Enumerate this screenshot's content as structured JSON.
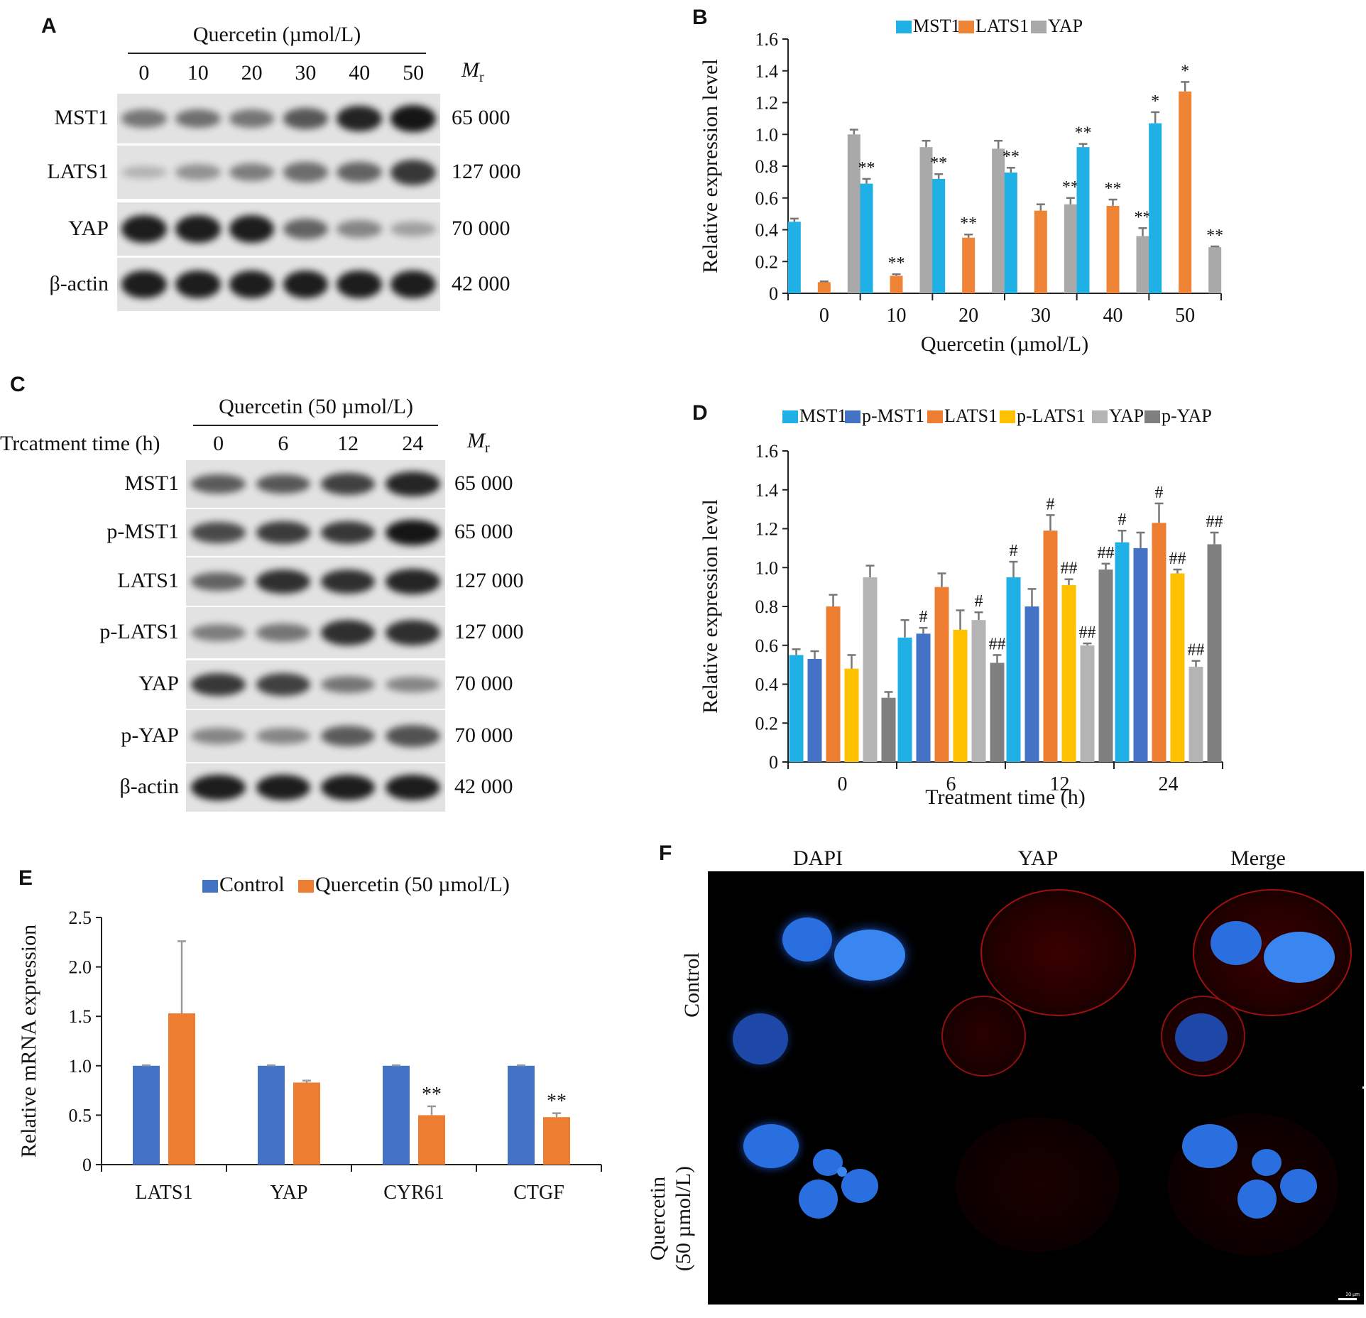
{
  "panels": {
    "a": "A",
    "b": "B",
    "c": "C",
    "d": "D",
    "e": "E",
    "f": "F"
  },
  "blot_a": {
    "title": "Quercetin (µmol/L)",
    "lanes": [
      "0",
      "10",
      "20",
      "30",
      "40",
      "50"
    ],
    "mr_label": "M",
    "mr_sub": "r",
    "rows": [
      {
        "label": "MST1",
        "mw": "65 000",
        "intensity": [
          0.45,
          0.48,
          0.45,
          0.62,
          0.92,
          1.0
        ]
      },
      {
        "label": "LATS1",
        "mw": "127 000",
        "intensity": [
          0.1,
          0.28,
          0.4,
          0.5,
          0.55,
          0.8
        ]
      },
      {
        "label": "YAP",
        "mw": "70 000",
        "intensity": [
          0.95,
          0.95,
          0.95,
          0.55,
          0.35,
          0.2
        ]
      },
      {
        "label": "β-actin",
        "mw": "42 000",
        "intensity": [
          0.95,
          0.95,
          0.95,
          0.95,
          0.95,
          0.95
        ]
      }
    ]
  },
  "blot_c": {
    "title": "Quercetin (50 µmol/L)",
    "time_label": "Trcatment time (h)",
    "lanes": [
      "0",
      "6",
      "12",
      "24"
    ],
    "mr_label": "M",
    "mr_sub": "r",
    "rows": [
      {
        "label": "MST1",
        "mw": "65 000",
        "intensity": [
          0.6,
          0.62,
          0.75,
          0.9
        ]
      },
      {
        "label": "p-MST1",
        "mw": "65 000",
        "intensity": [
          0.7,
          0.78,
          0.8,
          1.0
        ]
      },
      {
        "label": "LATS1",
        "mw": "127 000",
        "intensity": [
          0.55,
          0.85,
          0.85,
          0.9
        ]
      },
      {
        "label": "p-LATS1",
        "mw": "127 000",
        "intensity": [
          0.4,
          0.45,
          0.85,
          0.85
        ]
      },
      {
        "label": "YAP",
        "mw": "70 000",
        "intensity": [
          0.8,
          0.75,
          0.45,
          0.35
        ]
      },
      {
        "label": "p-YAP",
        "mw": "70 000",
        "intensity": [
          0.35,
          0.35,
          0.6,
          0.65
        ]
      },
      {
        "label": "β-actin",
        "mw": "42 000",
        "intensity": [
          0.95,
          0.95,
          0.95,
          0.95
        ]
      }
    ]
  },
  "chart_data": [
    {
      "id": "B",
      "type": "bar",
      "xlabel": "Quercetin (µmol/L)",
      "ylabel": "Relative expression level",
      "ylim": [
        0,
        1.6
      ],
      "yticks": [
        "0",
        "0.2",
        "0.4",
        "0.6",
        "0.8",
        "1.0",
        "1.2",
        "1.4",
        "1.6"
      ],
      "categories": [
        "0",
        "10",
        "20",
        "30",
        "40",
        "50"
      ],
      "series": [
        {
          "name": "MST1",
          "color": "#1fb0e6",
          "values": [
            0.45,
            0.69,
            0.72,
            0.76,
            0.92,
            1.07
          ],
          "errors": [
            0.02,
            0.03,
            0.03,
            0.03,
            0.02,
            0.07
          ],
          "marks": [
            "",
            "**",
            "**",
            "**",
            "**",
            "*"
          ]
        },
        {
          "name": "LATS1",
          "color": "#f08436",
          "values": [
            0.07,
            0.11,
            0.35,
            0.52,
            0.55,
            1.27
          ],
          "errors": [
            0.005,
            0.01,
            0.02,
            0.04,
            0.04,
            0.06
          ],
          "marks": [
            "",
            "**",
            "**",
            "",
            "**",
            "*"
          ]
        },
        {
          "name": "YAP",
          "color": "#a9a9a9",
          "values": [
            1.0,
            0.92,
            0.91,
            0.56,
            0.36,
            0.29
          ],
          "errors": [
            0.03,
            0.04,
            0.05,
            0.04,
            0.05,
            0.005
          ],
          "marks": [
            "",
            "",
            "",
            "**",
            "**",
            "**"
          ]
        }
      ]
    },
    {
      "id": "D",
      "type": "bar",
      "xlabel": "Treatment time (h)",
      "ylabel": "Relative expression level",
      "ylim": [
        0,
        1.6
      ],
      "yticks": [
        "0",
        "0.2",
        "0.4",
        "0.6",
        "0.8",
        "1.0",
        "1.2",
        "1.4",
        "1.6"
      ],
      "categories": [
        "0",
        "6",
        "12",
        "24"
      ],
      "series": [
        {
          "name": "MST1",
          "color": "#1fb0e6",
          "values": [
            0.55,
            0.64,
            0.95,
            1.13
          ],
          "errors": [
            0.03,
            0.09,
            0.08,
            0.06
          ],
          "marks": [
            "",
            "",
            "#",
            "#"
          ]
        },
        {
          "name": "p-MST1",
          "color": "#4472c4",
          "values": [
            0.53,
            0.66,
            0.8,
            1.1
          ],
          "errors": [
            0.04,
            0.03,
            0.09,
            0.08
          ],
          "marks": [
            "",
            "#",
            "",
            ""
          ]
        },
        {
          "name": "LATS1",
          "color": "#ed7d31",
          "values": [
            0.8,
            0.9,
            1.19,
            1.23
          ],
          "errors": [
            0.06,
            0.07,
            0.08,
            0.1
          ],
          "marks": [
            "",
            "",
            "#",
            "#"
          ]
        },
        {
          "name": "p-LATS1",
          "color": "#ffc000",
          "values": [
            0.48,
            0.68,
            0.91,
            0.97
          ],
          "errors": [
            0.07,
            0.1,
            0.03,
            0.02
          ],
          "marks": [
            "",
            "",
            "##",
            "##"
          ]
        },
        {
          "name": "YAP",
          "color": "#b4b4b4",
          "values": [
            0.95,
            0.73,
            0.6,
            0.49
          ],
          "errors": [
            0.06,
            0.04,
            0.01,
            0.03
          ],
          "marks": [
            "",
            "#",
            "##",
            "##"
          ]
        },
        {
          "name": "p-YAP",
          "color": "#7f7f7f",
          "values": [
            0.33,
            0.51,
            0.99,
            1.12
          ],
          "errors": [
            0.03,
            0.04,
            0.03,
            0.06
          ],
          "marks": [
            "",
            "##",
            "##",
            "##"
          ]
        }
      ]
    },
    {
      "id": "E",
      "type": "bar",
      "xlabel": "",
      "ylabel": "Relative mRNA expression",
      "ylim": [
        0,
        2.5
      ],
      "yticks": [
        "0",
        "0.5",
        "1.0",
        "1.5",
        "2.0",
        "2.5"
      ],
      "categories": [
        "LATS1",
        "YAP",
        "CYR61",
        "CTGF"
      ],
      "series": [
        {
          "name": "Control",
          "color": "#4472c4",
          "values": [
            1.0,
            1.0,
            1.0,
            1.0
          ],
          "errors": [
            0.005,
            0.005,
            0.005,
            0.005
          ],
          "marks": [
            "",
            "",
            "",
            ""
          ]
        },
        {
          "name": "Quercetin (50 µmol/L)",
          "color": "#ed7d31",
          "values": [
            1.53,
            0.83,
            0.5,
            0.48
          ],
          "errors": [
            0.73,
            0.02,
            0.09,
            0.04
          ],
          "marks": [
            "",
            "",
            "**",
            "**"
          ]
        }
      ]
    }
  ],
  "micro_f": {
    "columns": [
      "DAPI",
      "YAP",
      "Merge"
    ],
    "rows": [
      "Control",
      "Quercetin",
      "(50 µmol/L)"
    ],
    "scale_bar": "20 µm"
  }
}
